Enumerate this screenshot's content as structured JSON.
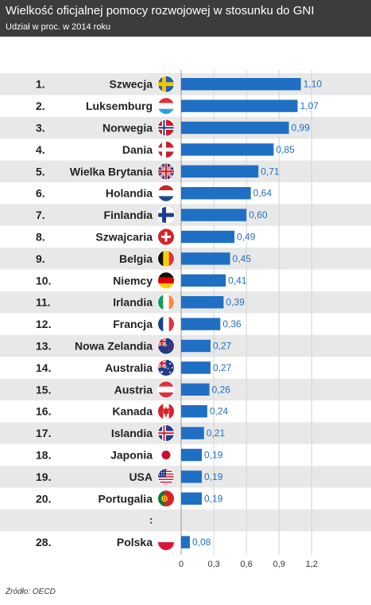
{
  "header": {
    "title": "Wielkość oficjalnej pomocy rozwojowej w stosunku do GNI",
    "subtitle": "Udział w proc. w 2014 roku"
  },
  "source": "Źródło: OECD",
  "colors": {
    "header_bg": "#3c3c3c",
    "bar": "#1f6fc4",
    "stripe": "#e8e8e8",
    "value_text": "#1f6fc4"
  },
  "ellipsis_mark": ":",
  "chart_data": {
    "type": "bar",
    "orientation": "horizontal",
    "title": "Wielkość oficjalnej pomocy rozwojowej w stosunku do GNI",
    "subtitle": "Udział w proc. w 2014 roku",
    "xlim": [
      0,
      1.2
    ],
    "x_ticks": [
      "0",
      "0,3",
      "0,6",
      "0,9",
      "1,2"
    ],
    "x_tick_values": [
      0,
      0.3,
      0.6,
      0.9,
      1.2
    ],
    "grid": true,
    "rows": [
      {
        "rank": "1.",
        "country": "Szwecja",
        "value": 1.1,
        "label": "1,10",
        "flag": "sweden-flag"
      },
      {
        "rank": "2.",
        "country": "Luksemburg",
        "value": 1.07,
        "label": "1,07",
        "flag": "luxembourg-flag"
      },
      {
        "rank": "3.",
        "country": "Norwegia",
        "value": 0.99,
        "label": "0,99",
        "flag": "norway-flag"
      },
      {
        "rank": "4.",
        "country": "Dania",
        "value": 0.85,
        "label": "0,85",
        "flag": "denmark-flag"
      },
      {
        "rank": "5.",
        "country": "Wielka Brytania",
        "value": 0.71,
        "label": "0,71",
        "flag": "uk-flag"
      },
      {
        "rank": "6.",
        "country": "Holandia",
        "value": 0.64,
        "label": "0,64",
        "flag": "netherlands-flag"
      },
      {
        "rank": "7.",
        "country": "Finlandia",
        "value": 0.6,
        "label": "0,60",
        "flag": "finland-flag"
      },
      {
        "rank": "8.",
        "country": "Szwajcaria",
        "value": 0.49,
        "label": "0,49",
        "flag": "switzerland-flag"
      },
      {
        "rank": "9.",
        "country": "Belgia",
        "value": 0.45,
        "label": "0,45",
        "flag": "belgium-flag"
      },
      {
        "rank": "10.",
        "country": "Niemcy",
        "value": 0.41,
        "label": "0,41",
        "flag": "germany-flag"
      },
      {
        "rank": "11.",
        "country": "Irlandia",
        "value": 0.39,
        "label": "0,39",
        "flag": "ireland-flag"
      },
      {
        "rank": "12.",
        "country": "Francja",
        "value": 0.36,
        "label": "0,36",
        "flag": "france-flag"
      },
      {
        "rank": "13.",
        "country": "Nowa Zelandia",
        "value": 0.27,
        "label": "0,27",
        "flag": "new-zealand-flag"
      },
      {
        "rank": "14.",
        "country": "Australia",
        "value": 0.27,
        "label": "0,27",
        "flag": "australia-flag"
      },
      {
        "rank": "15.",
        "country": "Austria",
        "value": 0.26,
        "label": "0,26",
        "flag": "austria-flag"
      },
      {
        "rank": "16.",
        "country": "Kanada",
        "value": 0.24,
        "label": "0,24",
        "flag": "canada-flag"
      },
      {
        "rank": "17.",
        "country": "Islandia",
        "value": 0.21,
        "label": "0,21",
        "flag": "iceland-flag"
      },
      {
        "rank": "18.",
        "country": "Japonia",
        "value": 0.19,
        "label": "0,19",
        "flag": "japan-flag"
      },
      {
        "rank": "19.",
        "country": "USA",
        "value": 0.19,
        "label": "0,19",
        "flag": "usa-flag"
      },
      {
        "rank": "20.",
        "country": "Portugalia",
        "value": 0.19,
        "label": "0,19",
        "flag": "portugal-flag"
      },
      {
        "rank": "28.",
        "country": "Polska",
        "value": 0.08,
        "label": "0,08",
        "flag": "poland-flag"
      }
    ]
  }
}
